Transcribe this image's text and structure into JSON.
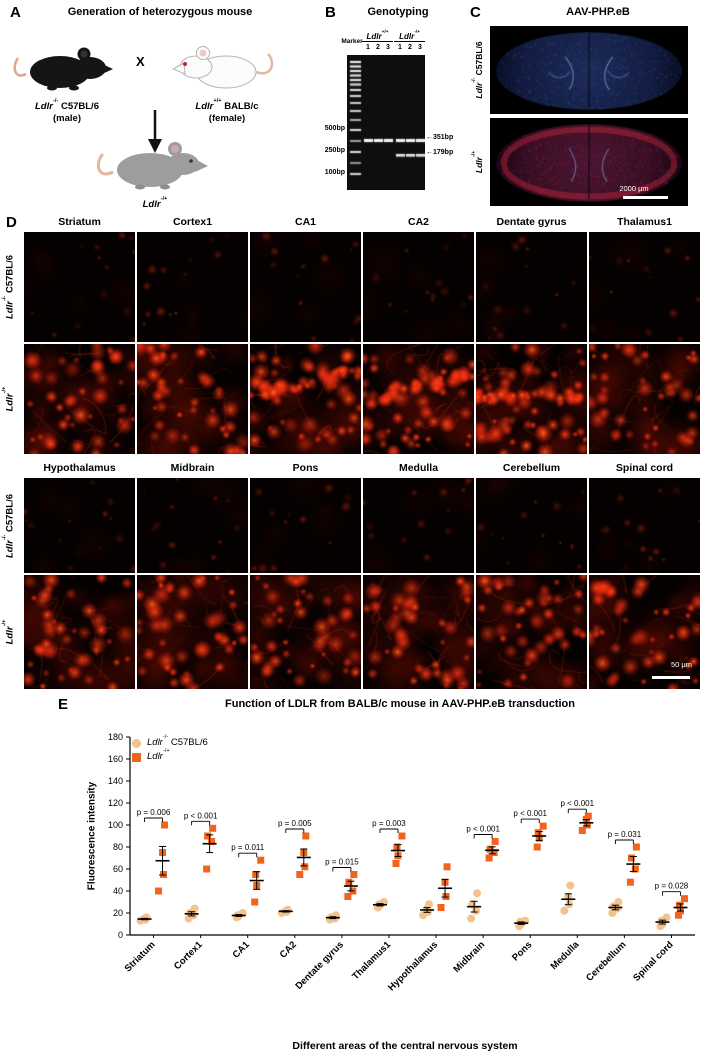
{
  "panel_a": {
    "letter": "A",
    "title": "Generation of heterozygous mouse",
    "cross": "X",
    "male": {
      "gene": "Ldlr",
      "sup": "-/-",
      "strain": " C57BL/6",
      "sex": "(male)"
    },
    "female": {
      "gene": "Ldlr",
      "sup": "+/+",
      "strain": " BALB/c",
      "sex": "(female)"
    },
    "offspring": {
      "gene": "Ldlr",
      "sup": "-/+"
    }
  },
  "panel_b": {
    "letter": "B",
    "title": "Genotyping",
    "marker_label": "Marker",
    "groups": [
      {
        "gene": "Ldlr",
        "sup": "+/+"
      },
      {
        "gene": "Ldlr",
        "sup": "-/+"
      }
    ],
    "lane_numbers": [
      "1",
      "2",
      "3",
      "1",
      "2",
      "3"
    ],
    "ladder_sizes": [
      "500bp",
      "250bp",
      "100bp"
    ],
    "band_arrows": [
      {
        "glyph": "←",
        "label": "351bp"
      },
      {
        "glyph": "←",
        "label": "179bp"
      }
    ]
  },
  "panel_c": {
    "letter": "C",
    "title": "AAV-PHP.eB",
    "scale_bar": "2000 μm"
  },
  "panel_d": {
    "letter": "D",
    "grid1_headers": [
      "Striatum",
      "Cortex1",
      "CA1",
      "CA2",
      "Dentate gyrus",
      "Thalamus1"
    ],
    "grid2_headers": [
      "Hypothalamus",
      "Midbrain",
      "Pons",
      "Medulla",
      "Cerebellum",
      "Spinal cord"
    ],
    "scale_bar": "50 μm"
  },
  "panel_e": {
    "letter": "E"
  },
  "genotypes": {
    "ko": {
      "gene": "Ldlr",
      "sup": "-/-",
      "strain": " C57BL/6"
    },
    "het": {
      "gene": "Ldlr",
      "sup": "-/+",
      "strain": ""
    }
  },
  "chart_data": {
    "type": "scatter",
    "title": "Function of LDLR from BALB/c mouse in AAV-PHP.eB transduction",
    "xlabel": "Different areas of the central nervous system",
    "ylabel": "Fluorescence intensity",
    "ylim": [
      0,
      180
    ],
    "yticks": [
      0,
      20,
      40,
      60,
      80,
      100,
      120,
      140,
      160,
      180
    ],
    "grid": false,
    "legend_position": "top-left",
    "categories": [
      "Striatum",
      "Cortex1",
      "CA1",
      "CA2",
      "Dentate gyrus",
      "Thalamus1",
      "Hypothalamus",
      "Midbrain",
      "Pons",
      "Medulla",
      "Cerebellum",
      "Spinal cord"
    ],
    "legend": [
      {
        "gene": "Ldlr",
        "sup": "-/-",
        "rest": " C57BL/6",
        "marker": "circle",
        "color": "#F5C18C"
      },
      {
        "gene": "Ldlr",
        "sup": "-/+",
        "rest": "",
        "marker": "square",
        "color": "#F1641E"
      }
    ],
    "series": [
      {
        "name": "Ldlr-/- C57BL/6",
        "marker": "circle",
        "color": "#F5C18C",
        "values": [
          [
            13,
            14,
            15,
            16
          ],
          [
            15,
            18,
            20,
            24
          ],
          [
            16,
            17,
            18,
            20
          ],
          [
            20,
            21,
            22,
            23
          ],
          [
            14,
            15,
            16,
            18
          ],
          [
            25,
            27,
            28,
            30
          ],
          [
            18,
            21,
            24,
            28
          ],
          [
            15,
            22,
            28,
            38
          ],
          [
            8,
            10,
            12,
            13
          ],
          [
            22,
            28,
            35,
            45
          ],
          [
            20,
            24,
            26,
            30
          ],
          [
            8,
            10,
            13,
            16
          ]
        ]
      },
      {
        "name": "Ldlr-/+",
        "marker": "square",
        "color": "#F1641E",
        "values": [
          [
            40,
            55,
            75,
            100
          ],
          [
            60,
            85,
            90,
            97
          ],
          [
            30,
            45,
            55,
            68
          ],
          [
            55,
            62,
            75,
            90
          ],
          [
            35,
            40,
            48,
            55
          ],
          [
            65,
            72,
            80,
            90
          ],
          [
            25,
            35,
            48,
            62
          ],
          [
            70,
            75,
            78,
            85
          ],
          [
            80,
            88,
            93,
            99
          ],
          [
            95,
            100,
            105,
            108
          ],
          [
            48,
            60,
            70,
            80
          ],
          [
            18,
            22,
            27,
            33
          ]
        ]
      }
    ],
    "error_bars": "mean ± SEM",
    "p_values": [
      "p = 0.006",
      "p < 0.001",
      "p = 0.011",
      "p = 0.005",
      "p = 0.015",
      "p = 0.003",
      "",
      "p < 0.001",
      "p < 0.001",
      "p < 0.001",
      "p = 0.031",
      "p = 0.028"
    ]
  }
}
